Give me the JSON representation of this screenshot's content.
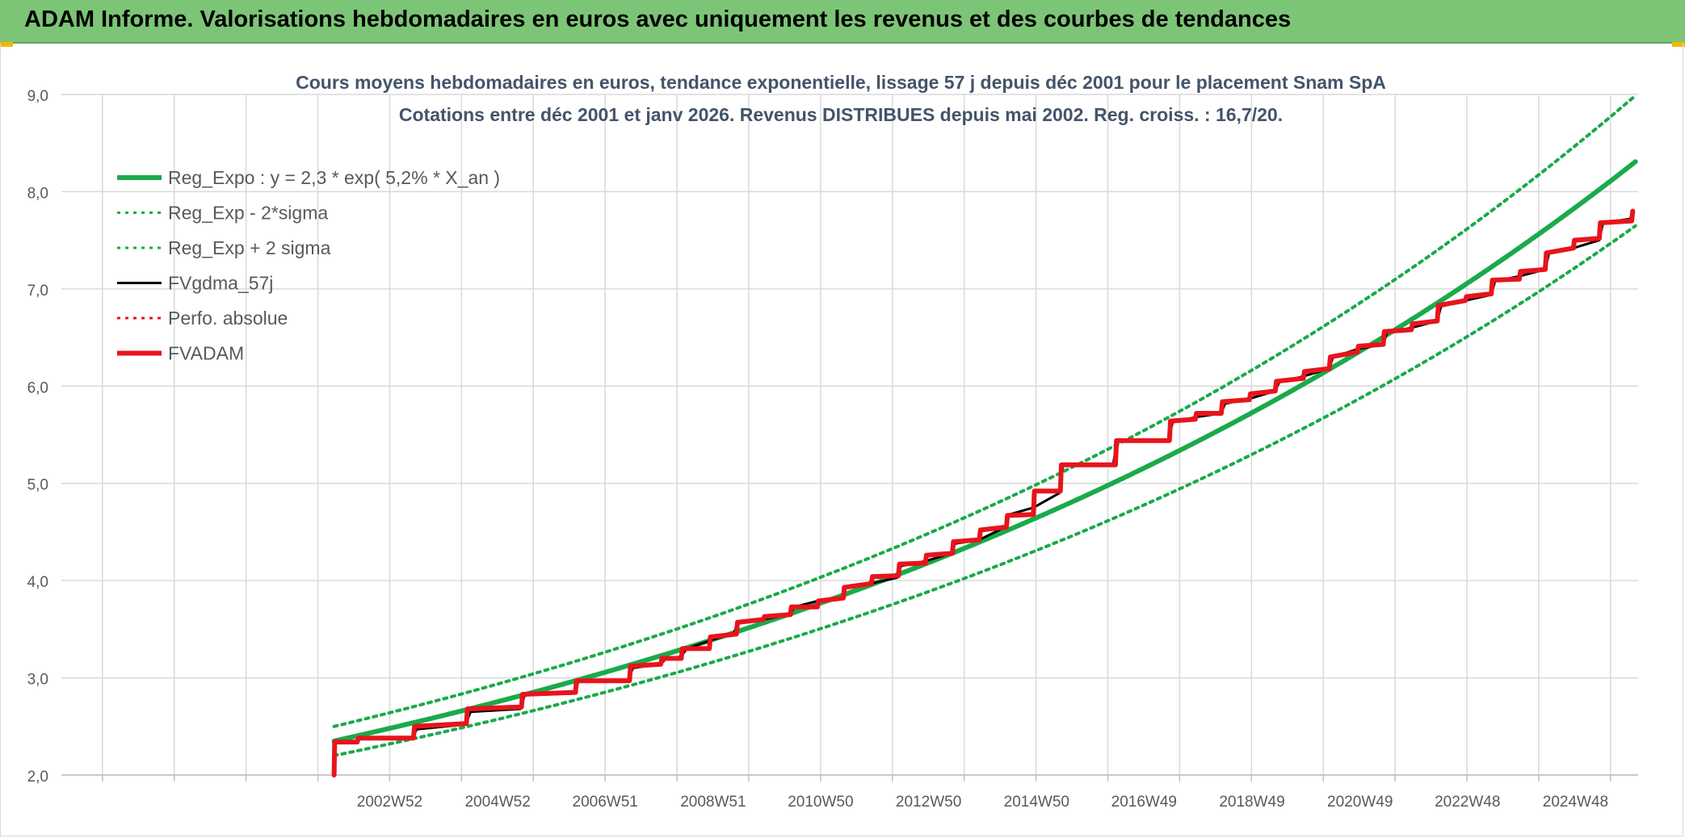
{
  "header": {
    "title": "ADAM Informe. Valorisations hebdomadaires en euros avec uniquement les revenus et des courbes de tendances"
  },
  "colors": {
    "header_bg": "#7cc576",
    "green": "#1aaa4a",
    "red": "#e8141c",
    "black": "#000000",
    "accent": "#f2b705"
  },
  "chart_data": {
    "type": "line",
    "title": "Cours moyens hebdomadaires en euros, tendance exponentielle, lissage 57 j depuis déc 2001 pour le placement Snam SpA",
    "subtitle": "Cotations entre déc 2001 et janv 2026. Revenus DISTRIBUES depuis mai 2002. Reg. croiss. : 16,7/20.",
    "ylim": [
      2.0,
      9.0
    ],
    "yticks": [
      "2,0",
      "3,0",
      "4,0",
      "5,0",
      "6,0",
      "7,0",
      "8,0",
      "9,0"
    ],
    "xlabels": [
      "2002W52",
      "2004W52",
      "2006W51",
      "2008W51",
      "2010W50",
      "2012W50",
      "2014W50",
      "2016W49",
      "2018W49",
      "2020W49",
      "2022W48",
      "2024W48"
    ],
    "xlabel_years": [
      2002.98,
      2004.98,
      2006.97,
      2008.97,
      2010.96,
      2012.96,
      2014.96,
      2016.95,
      2018.95,
      2020.95,
      2022.94,
      2024.94
    ],
    "xrange": [
      1996.9,
      2026.1
    ],
    "grid": true,
    "legend_position": "top-left",
    "series": [
      {
        "name": "Reg_Expo : y = 2,3 * exp( 5,2% *  X_an )",
        "type": "exp",
        "a": 2.35,
        "k": 0.0524,
        "t0": 2001.95,
        "t1": 2026.05,
        "color": "#1aaa4a",
        "style": "solid-thick"
      },
      {
        "name": "Reg_Exp - 2*sigma",
        "type": "exp",
        "a": 2.2,
        "k": 0.0517,
        "t0": 2001.95,
        "t1": 2026.05,
        "color": "#1aaa4a",
        "style": "dotted"
      },
      {
        "name": "Reg_Exp + 2 sigma",
        "type": "exp",
        "a": 2.5,
        "k": 0.0531,
        "t0": 2001.95,
        "t1": 2026.05,
        "color": "#1aaa4a",
        "style": "dotted"
      },
      {
        "name": "FVgdma_57j",
        "type": "points",
        "color": "#000000",
        "style": "solid",
        "points": [
          [
            2001.95,
            2.0
          ],
          [
            2001.96,
            2.34
          ],
          [
            2002.38,
            2.34
          ],
          [
            2002.45,
            2.38
          ],
          [
            2003.4,
            2.38
          ],
          [
            2003.48,
            2.47
          ],
          [
            2004.38,
            2.52
          ],
          [
            2004.48,
            2.65
          ],
          [
            2005.4,
            2.68
          ],
          [
            2005.48,
            2.82
          ],
          [
            2006.4,
            2.84
          ],
          [
            2006.48,
            2.97
          ],
          [
            2007.4,
            2.97
          ],
          [
            2007.48,
            3.1
          ],
          [
            2008.0,
            3.14
          ],
          [
            2008.08,
            3.19
          ],
          [
            2008.38,
            3.22
          ],
          [
            2008.48,
            3.3
          ],
          [
            2009.0,
            3.4
          ],
          [
            2009.35,
            3.45
          ],
          [
            2009.42,
            3.57
          ],
          [
            2009.9,
            3.6
          ],
          [
            2010.4,
            3.65
          ],
          [
            2010.48,
            3.73
          ],
          [
            2010.9,
            3.79
          ],
          [
            2011.35,
            3.82
          ],
          [
            2011.42,
            3.92
          ],
          [
            2011.9,
            3.97
          ],
          [
            2012.38,
            4.03
          ],
          [
            2012.45,
            4.15
          ],
          [
            2012.9,
            4.2
          ],
          [
            2013.38,
            4.28
          ],
          [
            2013.45,
            4.38
          ],
          [
            2013.9,
            4.42
          ],
          [
            2014.38,
            4.55
          ],
          [
            2014.45,
            4.68
          ],
          [
            2014.9,
            4.75
          ],
          [
            2015.38,
            4.9
          ],
          [
            2015.45,
            5.18
          ],
          [
            2016.38,
            5.2
          ],
          [
            2016.45,
            5.44
          ],
          [
            2017.4,
            5.44
          ],
          [
            2017.48,
            5.63
          ],
          [
            2017.9,
            5.68
          ],
          [
            2018.38,
            5.72
          ],
          [
            2018.45,
            5.82
          ],
          [
            2018.9,
            5.87
          ],
          [
            2019.38,
            5.95
          ],
          [
            2019.45,
            6.04
          ],
          [
            2019.9,
            6.1
          ],
          [
            2020.38,
            6.18
          ],
          [
            2020.45,
            6.3
          ],
          [
            2020.9,
            6.38
          ],
          [
            2021.38,
            6.43
          ],
          [
            2021.45,
            6.55
          ],
          [
            2021.9,
            6.6
          ],
          [
            2022.38,
            6.67
          ],
          [
            2022.45,
            6.82
          ],
          [
            2022.9,
            6.88
          ],
          [
            2023.38,
            6.94
          ],
          [
            2023.45,
            7.08
          ],
          [
            2023.9,
            7.13
          ],
          [
            2024.38,
            7.2
          ],
          [
            2024.45,
            7.37
          ],
          [
            2024.9,
            7.42
          ],
          [
            2025.38,
            7.5
          ],
          [
            2025.45,
            7.68
          ],
          [
            2025.95,
            7.72
          ],
          [
            2026.0,
            7.78
          ]
        ]
      },
      {
        "name": "Perfo. absolue",
        "type": "none",
        "color": "#e8141c",
        "style": "dotted"
      },
      {
        "name": "FVADAM",
        "type": "points",
        "color": "#e8141c",
        "style": "solid-thick",
        "points": [
          [
            2001.95,
            2.0
          ],
          [
            2001.96,
            2.34
          ],
          [
            2002.38,
            2.34
          ],
          [
            2002.4,
            2.38
          ],
          [
            2003.42,
            2.38
          ],
          [
            2003.44,
            2.5
          ],
          [
            2004.4,
            2.53
          ],
          [
            2004.42,
            2.68
          ],
          [
            2005.42,
            2.7
          ],
          [
            2005.44,
            2.83
          ],
          [
            2006.42,
            2.85
          ],
          [
            2006.44,
            2.97
          ],
          [
            2007.42,
            2.97
          ],
          [
            2007.44,
            3.12
          ],
          [
            2008.0,
            3.14
          ],
          [
            2008.02,
            3.2
          ],
          [
            2008.38,
            3.2
          ],
          [
            2008.4,
            3.3
          ],
          [
            2008.9,
            3.3
          ],
          [
            2008.92,
            3.42
          ],
          [
            2009.4,
            3.45
          ],
          [
            2009.42,
            3.57
          ],
          [
            2009.9,
            3.6
          ],
          [
            2009.92,
            3.63
          ],
          [
            2010.4,
            3.65
          ],
          [
            2010.42,
            3.73
          ],
          [
            2010.9,
            3.73
          ],
          [
            2010.92,
            3.79
          ],
          [
            2011.38,
            3.82
          ],
          [
            2011.4,
            3.93
          ],
          [
            2011.9,
            3.97
          ],
          [
            2011.92,
            4.04
          ],
          [
            2012.4,
            4.05
          ],
          [
            2012.42,
            4.17
          ],
          [
            2012.9,
            4.18
          ],
          [
            2012.92,
            4.26
          ],
          [
            2013.4,
            4.28
          ],
          [
            2013.42,
            4.4
          ],
          [
            2013.9,
            4.42
          ],
          [
            2013.92,
            4.52
          ],
          [
            2014.4,
            4.55
          ],
          [
            2014.42,
            4.67
          ],
          [
            2014.9,
            4.68
          ],
          [
            2014.92,
            4.92
          ],
          [
            2015.4,
            4.92
          ],
          [
            2015.42,
            5.19
          ],
          [
            2016.42,
            5.19
          ],
          [
            2016.44,
            5.44
          ],
          [
            2017.42,
            5.44
          ],
          [
            2017.44,
            5.64
          ],
          [
            2017.9,
            5.66
          ],
          [
            2017.92,
            5.72
          ],
          [
            2018.38,
            5.72
          ],
          [
            2018.4,
            5.84
          ],
          [
            2018.9,
            5.86
          ],
          [
            2018.92,
            5.92
          ],
          [
            2019.38,
            5.95
          ],
          [
            2019.4,
            6.05
          ],
          [
            2019.9,
            6.08
          ],
          [
            2019.92,
            6.15
          ],
          [
            2020.38,
            6.18
          ],
          [
            2020.4,
            6.3
          ],
          [
            2020.9,
            6.35
          ],
          [
            2020.92,
            6.41
          ],
          [
            2021.38,
            6.43
          ],
          [
            2021.4,
            6.56
          ],
          [
            2021.9,
            6.58
          ],
          [
            2021.92,
            6.64
          ],
          [
            2022.38,
            6.67
          ],
          [
            2022.4,
            6.83
          ],
          [
            2022.9,
            6.88
          ],
          [
            2022.92,
            6.92
          ],
          [
            2023.38,
            6.95
          ],
          [
            2023.4,
            7.09
          ],
          [
            2023.9,
            7.1
          ],
          [
            2023.92,
            7.18
          ],
          [
            2024.38,
            7.2
          ],
          [
            2024.4,
            7.37
          ],
          [
            2024.9,
            7.42
          ],
          [
            2024.92,
            7.5
          ],
          [
            2025.38,
            7.52
          ],
          [
            2025.4,
            7.68
          ],
          [
            2025.98,
            7.7
          ],
          [
            2026.0,
            7.8
          ]
        ]
      }
    ]
  }
}
